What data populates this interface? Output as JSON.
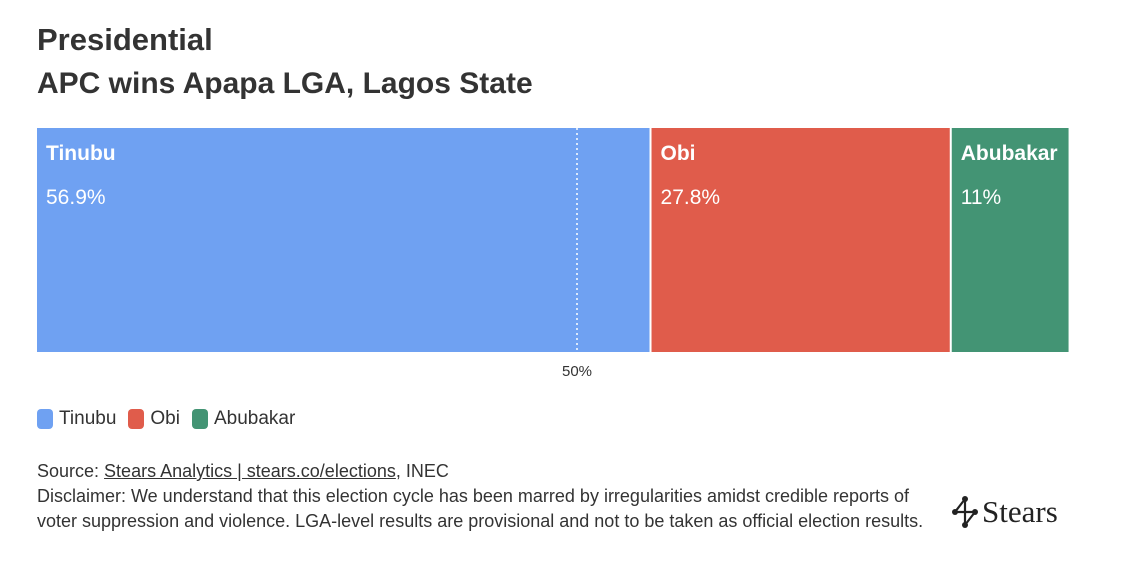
{
  "header": {
    "title": "Presidential",
    "subtitle": "APC wins Apapa LGA, Lagos State"
  },
  "chart_data": {
    "type": "bar",
    "orientation": "horizontal-stacked",
    "xlim": [
      0,
      100
    ],
    "reference_line": {
      "value": 50,
      "label": "50%"
    },
    "series": [
      {
        "name": "Tinubu",
        "value": 56.9,
        "label": "56.9%",
        "color": "#6fa1f2"
      },
      {
        "name": "Obi",
        "value": 27.8,
        "label": "27.8%",
        "color": "#e05c4b"
      },
      {
        "name": "Abubakar",
        "value": 11,
        "label": "11%",
        "color": "#439474"
      }
    ],
    "legend_placement": "bottom-left"
  },
  "legend": {
    "items": [
      {
        "label": "Tinubu",
        "color": "#6fa1f2"
      },
      {
        "label": "Obi",
        "color": "#e05c4b"
      },
      {
        "label": "Abubakar",
        "color": "#439474"
      }
    ]
  },
  "footer": {
    "source_prefix": "Source: ",
    "source_link": "Stears Analytics | stears.co/elections",
    "source_suffix": ", INEC",
    "disclaimer": "Disclaimer: We understand that this election cycle has been marred by irregularities amidst credible reports of voter suppression and violence. LGA-level results are provisional and not to be taken as official election results."
  },
  "logo": {
    "text": "Stears",
    "icon": "stears-network-logo"
  }
}
